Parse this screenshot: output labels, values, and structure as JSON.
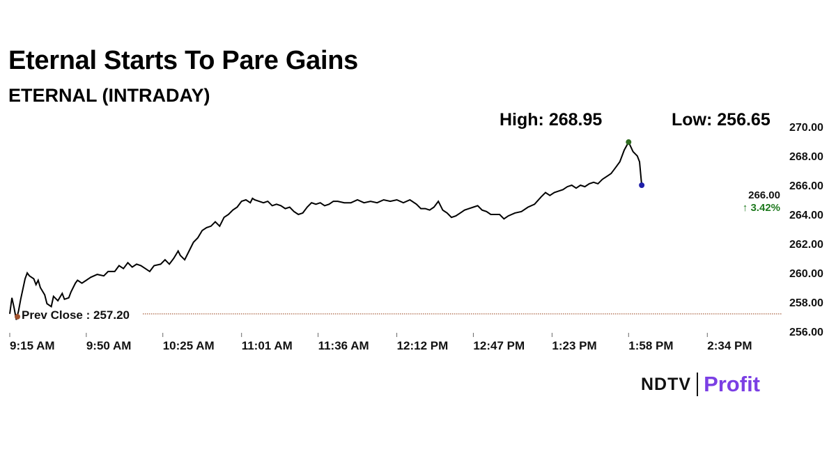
{
  "header": {
    "title": "Eternal Starts To Pare Gains",
    "subtitle": "ETERNAL (INTRADAY)",
    "high_text": "High: 268.95",
    "low_text": "Low: 256.65"
  },
  "logo": {
    "brand": "NDTV",
    "product": "Profit"
  },
  "colors": {
    "line": "#000000",
    "high_marker": "#2e6b1f",
    "last_marker": "#1f1fa8",
    "prev_close_line": "#a0522d",
    "change_up": "#1f7a1f",
    "axis_text": "#111111",
    "logo_accent": "#7b3fe4"
  },
  "chart_data": {
    "type": "line",
    "title": "ETERNAL (INTRADAY)",
    "xlabel": "",
    "ylabel": "",
    "ylim": [
      256,
      270
    ],
    "y_ticks": [
      "256.00",
      "258.00",
      "260.00",
      "262.00",
      "264.00",
      "266.00",
      "268.00",
      "270.00"
    ],
    "x_ticks": [
      "9:15 AM",
      "9:50 AM",
      "10:25 AM",
      "11:01 AM",
      "11:36 AM",
      "12:12 PM",
      "12:47 PM",
      "1:23 PM",
      "1:58 PM",
      "2:34 PM"
    ],
    "x_tick_minutes": [
      555,
      590,
      625,
      661,
      696,
      732,
      767,
      803,
      838,
      874
    ],
    "xlim_minutes": [
      555,
      908
    ],
    "grid": false,
    "prev_close": 257.2,
    "prev_close_label": "Prev Close : 257.20",
    "last_price": 266.0,
    "last_price_label": "266.00",
    "change_label": "↑ 3.42%",
    "high": 268.95,
    "low": 256.65,
    "series": [
      {
        "points": [
          [
            555,
            257.2
          ],
          [
            556,
            258.3
          ],
          [
            557,
            257.6
          ],
          [
            558,
            256.8
          ],
          [
            559,
            257.4
          ],
          [
            560,
            258.2
          ],
          [
            562,
            259.6
          ],
          [
            563,
            260.0
          ],
          [
            564,
            259.8
          ],
          [
            566,
            259.6
          ],
          [
            567,
            259.2
          ],
          [
            568,
            259.5
          ],
          [
            569,
            259.0
          ],
          [
            571,
            258.5
          ],
          [
            572,
            257.9
          ],
          [
            574,
            257.7
          ],
          [
            575,
            258.4
          ],
          [
            577,
            258.1
          ],
          [
            579,
            258.6
          ],
          [
            580,
            258.2
          ],
          [
            582,
            258.3
          ],
          [
            583,
            258.7
          ],
          [
            585,
            259.3
          ],
          [
            586,
            259.5
          ],
          [
            588,
            259.3
          ],
          [
            590,
            259.5
          ],
          [
            592,
            259.7
          ],
          [
            595,
            259.9
          ],
          [
            598,
            259.8
          ],
          [
            600,
            260.1
          ],
          [
            603,
            260.1
          ],
          [
            605,
            260.5
          ],
          [
            607,
            260.3
          ],
          [
            609,
            260.7
          ],
          [
            611,
            260.4
          ],
          [
            613,
            260.6
          ],
          [
            615,
            260.5
          ],
          [
            617,
            260.3
          ],
          [
            619,
            260.1
          ],
          [
            621,
            260.5
          ],
          [
            624,
            260.6
          ],
          [
            626,
            260.9
          ],
          [
            628,
            260.6
          ],
          [
            630,
            261.0
          ],
          [
            632,
            261.5
          ],
          [
            633,
            261.2
          ],
          [
            635,
            260.9
          ],
          [
            637,
            261.5
          ],
          [
            639,
            262.1
          ],
          [
            641,
            262.4
          ],
          [
            643,
            262.9
          ],
          [
            645,
            263.1
          ],
          [
            647,
            263.2
          ],
          [
            649,
            263.5
          ],
          [
            651,
            263.2
          ],
          [
            653,
            263.8
          ],
          [
            655,
            264.0
          ],
          [
            657,
            264.3
          ],
          [
            659,
            264.5
          ],
          [
            661,
            264.9
          ],
          [
            663,
            265.0
          ],
          [
            665,
            264.8
          ],
          [
            666,
            265.1
          ],
          [
            667,
            265.0
          ],
          [
            669,
            264.9
          ],
          [
            671,
            264.8
          ],
          [
            673,
            264.9
          ],
          [
            675,
            264.6
          ],
          [
            677,
            264.7
          ],
          [
            679,
            264.6
          ],
          [
            681,
            264.4
          ],
          [
            683,
            264.5
          ],
          [
            685,
            264.2
          ],
          [
            687,
            264.0
          ],
          [
            689,
            264.1
          ],
          [
            691,
            264.5
          ],
          [
            693,
            264.8
          ],
          [
            695,
            264.7
          ],
          [
            697,
            264.8
          ],
          [
            699,
            264.6
          ],
          [
            701,
            264.7
          ],
          [
            703,
            264.9
          ],
          [
            705,
            264.9
          ],
          [
            708,
            264.8
          ],
          [
            711,
            264.8
          ],
          [
            714,
            265.0
          ],
          [
            717,
            264.8
          ],
          [
            720,
            264.9
          ],
          [
            723,
            264.8
          ],
          [
            726,
            265.0
          ],
          [
            729,
            264.9
          ],
          [
            732,
            265.0
          ],
          [
            735,
            264.8
          ],
          [
            738,
            265.0
          ],
          [
            741,
            264.7
          ],
          [
            743,
            264.4
          ],
          [
            745,
            264.4
          ],
          [
            747,
            264.3
          ],
          [
            749,
            264.5
          ],
          [
            751,
            264.9
          ],
          [
            753,
            264.3
          ],
          [
            755,
            264.1
          ],
          [
            757,
            263.8
          ],
          [
            759,
            263.9
          ],
          [
            761,
            264.1
          ],
          [
            763,
            264.3
          ],
          [
            765,
            264.4
          ],
          [
            767,
            264.5
          ],
          [
            769,
            264.6
          ],
          [
            771,
            264.3
          ],
          [
            773,
            264.2
          ],
          [
            775,
            264.0
          ],
          [
            777,
            264.0
          ],
          [
            779,
            264.0
          ],
          [
            781,
            263.7
          ],
          [
            783,
            263.9
          ],
          [
            786,
            264.1
          ],
          [
            789,
            264.2
          ],
          [
            792,
            264.5
          ],
          [
            795,
            264.7
          ],
          [
            798,
            265.2
          ],
          [
            800,
            265.5
          ],
          [
            802,
            265.3
          ],
          [
            804,
            265.5
          ],
          [
            806,
            265.6
          ],
          [
            808,
            265.7
          ],
          [
            810,
            265.9
          ],
          [
            812,
            266.0
          ],
          [
            814,
            265.8
          ],
          [
            816,
            266.0
          ],
          [
            818,
            265.9
          ],
          [
            820,
            266.1
          ],
          [
            822,
            266.2
          ],
          [
            824,
            266.1
          ],
          [
            826,
            266.4
          ],
          [
            828,
            266.6
          ],
          [
            830,
            266.8
          ],
          [
            832,
            267.2
          ],
          [
            834,
            267.6
          ],
          [
            836,
            268.4
          ],
          [
            838,
            268.95
          ],
          [
            840,
            268.3
          ],
          [
            842,
            268.0
          ],
          [
            843,
            267.6
          ],
          [
            844,
            266.0
          ]
        ]
      }
    ]
  }
}
